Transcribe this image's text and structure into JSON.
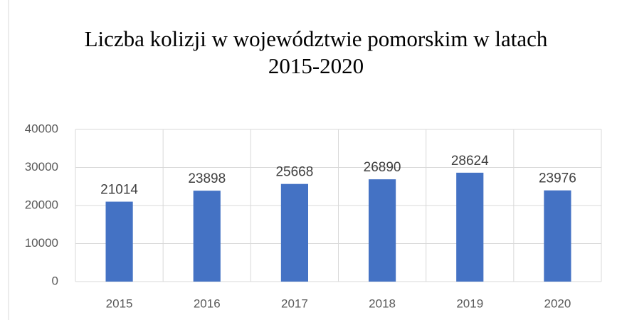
{
  "chart_data": {
    "type": "bar",
    "title": "Liczba kolizji w województwie pomorskim w latach 2015-2020",
    "categories": [
      "2015",
      "2016",
      "2017",
      "2018",
      "2019",
      "2020"
    ],
    "values": [
      21014,
      23898,
      25668,
      26890,
      28624,
      23976
    ],
    "color": "#4472c4",
    "ylim": [
      0,
      40000
    ],
    "yticks": [
      0,
      10000,
      20000,
      30000,
      40000
    ],
    "grid": true
  }
}
